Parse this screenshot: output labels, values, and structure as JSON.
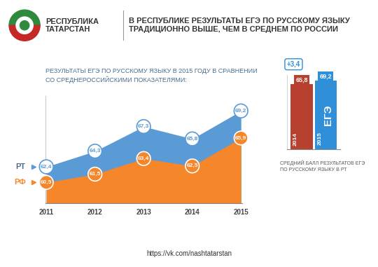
{
  "header": {
    "brand": "РЕСПУБЛИКА\nТАТАРСТАН",
    "title": "В РЕСПУБЛИКЕ РЕЗУЛЬТАТЫ ЕГЭ ПО РУССКОМУ ЯЗЫКУ\nТРАДИЦИОННО ВЫШЕ, ЧЕМ В СРЕДНЕМ ПО РОССИИ"
  },
  "chart_data": [
    {
      "type": "area",
      "title": "РЕЗУЛЬТАТЫ ЕГЭ ПО РУССКОМУ ЯЗЫКУ В 2015 ГОДУ В СРАВНЕНИИ\nСО СРЕДНЕРОССИЙСКИМИ ПОКАЗАТЕЛЯМИ:",
      "categories": [
        "2011",
        "2012",
        "2013",
        "2014",
        "2015"
      ],
      "series": [
        {
          "name": "РТ",
          "color": "#5b9bd5",
          "values": [
            62.4,
            64.3,
            67.3,
            65.8,
            69.2
          ],
          "value_labels": [
            "62,4",
            "64,3",
            "67,3",
            "65,8",
            "69,2"
          ]
        },
        {
          "name": "РФ",
          "color": "#f5862a",
          "values": [
            60.5,
            61.5,
            63.4,
            62.5,
            65.9
          ],
          "value_labels": [
            "60,5",
            "61,5",
            "63,4",
            "62,5",
            "65,9"
          ]
        }
      ],
      "ylim": [
        58,
        71
      ],
      "tick_labels": "x",
      "grid": false,
      "data_labels": true
    },
    {
      "type": "bar",
      "title": "СРЕДНИЙ БАЛЛ РЕЗУЛЬТАТОВ ЕГЭ\nПО РУССКОМУ ЯЗЫКУ В РТ",
      "categories": [
        "2014",
        "2015"
      ],
      "values": [
        65.8,
        69.2
      ],
      "value_labels": [
        "65,8",
        "69,2"
      ],
      "colors": [
        "#b8402f",
        "#2f8fd8"
      ],
      "annotations": [
        "+3,4",
        "ЕГЭ"
      ],
      "ylim": [
        0,
        75
      ],
      "tick_labels": false,
      "grid": false,
      "data_labels": true
    }
  ],
  "footer": {
    "url": "https://vk.com/nashtatarstan"
  }
}
